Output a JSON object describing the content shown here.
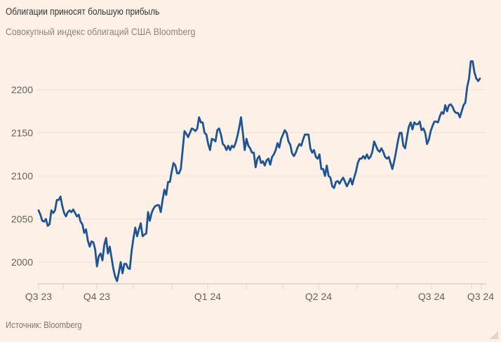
{
  "title": "Облигации приносят большую прибыль",
  "subtitle": "Совокупный индекс облигаций США Bloomberg",
  "source": "Источник: Bloomberg",
  "colors": {
    "line": "#1f5494",
    "grid": "#ece2d9",
    "background": "#fdf1e7"
  },
  "chart_data": {
    "type": "line",
    "title": "Облигации приносят большую прибыль",
    "subtitle": "Совокупный индекс облигаций США Bloomberg",
    "xlabel": "",
    "ylabel": "",
    "ylim": [
      1978,
      2240
    ],
    "y_ticks": [
      "2000",
      "2050",
      "2100",
      "2150",
      "2200"
    ],
    "y_tick_values": [
      2000,
      2050,
      2100,
      2150,
      2200
    ],
    "x_ticks": [
      "Q3 23",
      "Q4 23",
      "Q1 24",
      "Q2 24",
      "Q3 24",
      "Q3 24"
    ],
    "grid": true,
    "series": [
      {
        "name": "Совокупный индекс облигаций США Bloomberg",
        "values": [
          2060,
          2055,
          2048,
          2047,
          2050,
          2042,
          2044,
          2060,
          2057,
          2060,
          2072,
          2072,
          2076,
          2065,
          2057,
          2053,
          2058,
          2060,
          2058,
          2061,
          2057,
          2053,
          2055,
          2047,
          2044,
          2034,
          2038,
          2025,
          2018,
          2024,
          2023,
          2015,
          1995,
          2007,
          2010,
          2002,
          2020,
          2028,
          2010,
          2018,
          2005,
          1992,
          1983,
          1978,
          1988,
          2000,
          1987,
          1998,
          1998,
          1993,
          1992,
          2013,
          2028,
          2040,
          2030,
          2038,
          2045,
          2030,
          2032,
          2033,
          2058,
          2048,
          2057,
          2062,
          2065,
          2066,
          2066,
          2058,
          2072,
          2084,
          2078,
          2093,
          2093,
          2105,
          2115,
          2112,
          2103,
          2103,
          2108,
          2130,
          2152,
          2149,
          2145,
          2150,
          2155,
          2154,
          2152,
          2155,
          2168,
          2162,
          2162,
          2150,
          2148,
          2137,
          2130,
          2143,
          2142,
          2140,
          2153,
          2155,
          2148,
          2137,
          2135,
          2130,
          2135,
          2130,
          2135,
          2133,
          2138,
          2146,
          2156,
          2168,
          2150,
          2130,
          2143,
          2135,
          2132,
          2127,
          2127,
          2110,
          2120,
          2123,
          2115,
          2117,
          2112,
          2118,
          2120,
          2113,
          2122,
          2125,
          2130,
          2138,
          2133,
          2143,
          2148,
          2153,
          2150,
          2140,
          2136,
          2126,
          2123,
          2127,
          2133,
          2137,
          2135,
          2142,
          2148,
          2148,
          2148,
          2132,
          2127,
          2130,
          2122,
          2120,
          2125,
          2108,
          2108,
          2100,
          2112,
          2100,
          2098,
          2088,
          2086,
          2093,
          2094,
          2091,
          2095,
          2098,
          2093,
          2088,
          2092,
          2097,
          2090,
          2098,
          2105,
          2115,
          2120,
          2120,
          2123,
          2120,
          2125,
          2120,
          2122,
          2128,
          2140,
          2135,
          2130,
          2128,
          2132,
          2128,
          2122,
          2120,
          2122,
          2115,
          2108,
          2117,
          2128,
          2140,
          2150,
          2150,
          2135,
          2132,
          2145,
          2157,
          2162,
          2154,
          2162,
          2160,
          2160,
          2163,
          2153,
          2155,
          2150,
          2137,
          2142,
          2152,
          2158,
          2163,
          2163,
          2162,
          2169,
          2174,
          2172,
          2182,
          2175,
          2182,
          2183,
          2180,
          2175,
          2173,
          2173,
          2168,
          2175,
          2182,
          2185,
          2203,
          2213,
          2233,
          2233,
          2220,
          2213,
          2210,
          2213
        ]
      }
    ]
  }
}
